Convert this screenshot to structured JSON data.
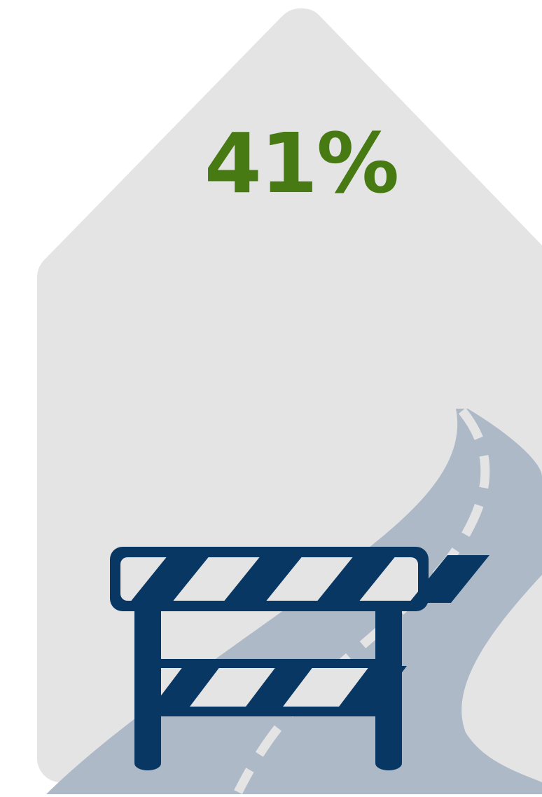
{
  "infographic": {
    "stat_value": "41%",
    "icon": "road-barricade-icon",
    "background_icon": "winding-road-icon"
  },
  "colors": {
    "house_shape": "#e4e4e4",
    "road": "#adb9c7",
    "road_dash": "#e4e4e4",
    "barricade": "#083763",
    "stat_text": "#477a12"
  }
}
